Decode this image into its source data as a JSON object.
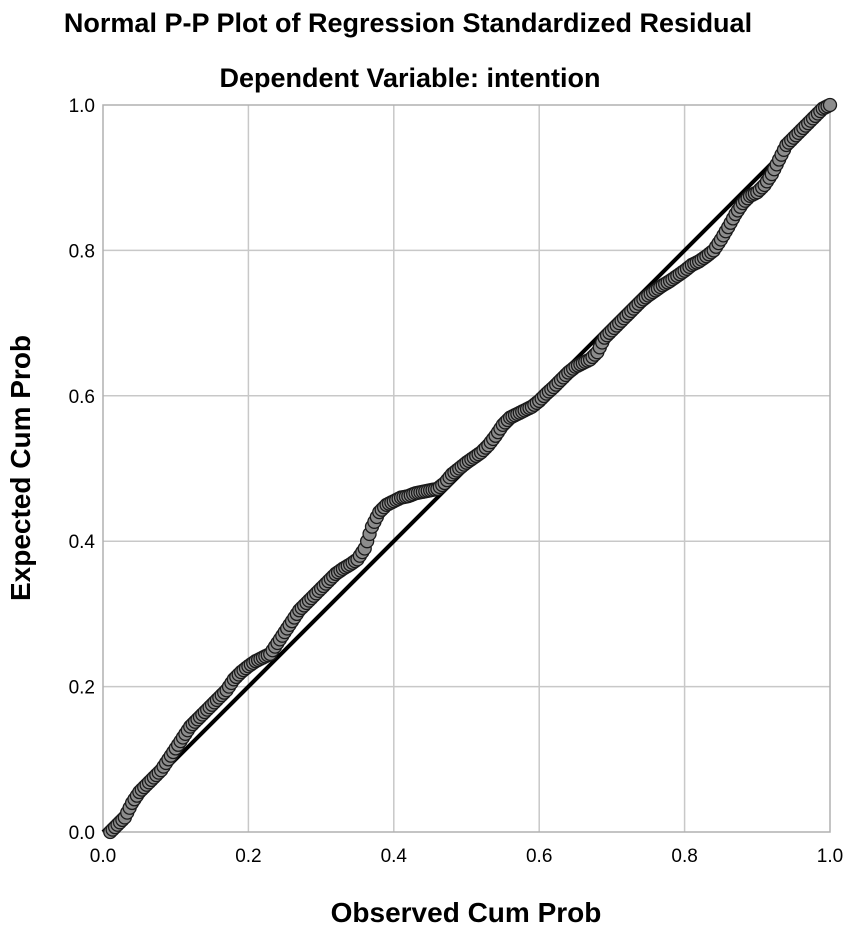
{
  "chart_data": {
    "type": "scatter",
    "title": "Normal P-P Plot of Regression Standardized Residual",
    "subtitle": "Dependent Variable: intention",
    "xlabel": "Observed Cum Prob",
    "ylabel": "Expected Cum Prob",
    "xlim": [
      0.0,
      1.0
    ],
    "ylim": [
      0.0,
      1.0
    ],
    "x_ticks": [
      "0.0",
      "0.2",
      "0.4",
      "0.6",
      "0.8",
      "1.0"
    ],
    "y_ticks": [
      "0.0",
      "0.2",
      "0.4",
      "0.6",
      "0.8",
      "1.0"
    ],
    "grid": true,
    "reference_line": {
      "from": [
        0.0,
        0.0
      ],
      "to": [
        1.0,
        1.0
      ]
    },
    "points": [
      [
        0.01,
        0.0
      ],
      [
        0.02,
        0.01
      ],
      [
        0.03,
        0.02
      ],
      [
        0.04,
        0.04
      ],
      [
        0.05,
        0.055
      ],
      [
        0.06,
        0.065
      ],
      [
        0.07,
        0.075
      ],
      [
        0.08,
        0.085
      ],
      [
        0.09,
        0.1
      ],
      [
        0.1,
        0.115
      ],
      [
        0.11,
        0.13
      ],
      [
        0.12,
        0.145
      ],
      [
        0.13,
        0.155
      ],
      [
        0.14,
        0.165
      ],
      [
        0.15,
        0.175
      ],
      [
        0.16,
        0.185
      ],
      [
        0.17,
        0.195
      ],
      [
        0.18,
        0.21
      ],
      [
        0.19,
        0.22
      ],
      [
        0.2,
        0.228
      ],
      [
        0.21,
        0.235
      ],
      [
        0.22,
        0.24
      ],
      [
        0.23,
        0.245
      ],
      [
        0.24,
        0.26
      ],
      [
        0.25,
        0.275
      ],
      [
        0.26,
        0.29
      ],
      [
        0.27,
        0.305
      ],
      [
        0.28,
        0.315
      ],
      [
        0.29,
        0.325
      ],
      [
        0.3,
        0.335
      ],
      [
        0.31,
        0.345
      ],
      [
        0.32,
        0.355
      ],
      [
        0.33,
        0.362
      ],
      [
        0.34,
        0.368
      ],
      [
        0.35,
        0.375
      ],
      [
        0.36,
        0.39
      ],
      [
        0.37,
        0.42
      ],
      [
        0.38,
        0.44
      ],
      [
        0.39,
        0.45
      ],
      [
        0.4,
        0.455
      ],
      [
        0.41,
        0.46
      ],
      [
        0.42,
        0.462
      ],
      [
        0.43,
        0.466
      ],
      [
        0.44,
        0.468
      ],
      [
        0.45,
        0.47
      ],
      [
        0.46,
        0.472
      ],
      [
        0.47,
        0.48
      ],
      [
        0.48,
        0.492
      ],
      [
        0.49,
        0.5
      ],
      [
        0.5,
        0.508
      ],
      [
        0.51,
        0.515
      ],
      [
        0.52,
        0.522
      ],
      [
        0.53,
        0.532
      ],
      [
        0.54,
        0.545
      ],
      [
        0.55,
        0.56
      ],
      [
        0.56,
        0.57
      ],
      [
        0.57,
        0.575
      ],
      [
        0.58,
        0.58
      ],
      [
        0.59,
        0.585
      ],
      [
        0.6,
        0.593
      ],
      [
        0.61,
        0.603
      ],
      [
        0.62,
        0.612
      ],
      [
        0.63,
        0.622
      ],
      [
        0.64,
        0.632
      ],
      [
        0.65,
        0.64
      ],
      [
        0.66,
        0.645
      ],
      [
        0.67,
        0.65
      ],
      [
        0.68,
        0.66
      ],
      [
        0.69,
        0.68
      ],
      [
        0.7,
        0.69
      ],
      [
        0.71,
        0.7
      ],
      [
        0.72,
        0.71
      ],
      [
        0.73,
        0.72
      ],
      [
        0.74,
        0.73
      ],
      [
        0.75,
        0.738
      ],
      [
        0.76,
        0.745
      ],
      [
        0.77,
        0.752
      ],
      [
        0.78,
        0.758
      ],
      [
        0.79,
        0.765
      ],
      [
        0.8,
        0.772
      ],
      [
        0.81,
        0.78
      ],
      [
        0.82,
        0.785
      ],
      [
        0.83,
        0.792
      ],
      [
        0.84,
        0.8
      ],
      [
        0.85,
        0.815
      ],
      [
        0.86,
        0.832
      ],
      [
        0.87,
        0.85
      ],
      [
        0.88,
        0.865
      ],
      [
        0.89,
        0.875
      ],
      [
        0.9,
        0.88
      ],
      [
        0.91,
        0.89
      ],
      [
        0.92,
        0.905
      ],
      [
        0.93,
        0.925
      ],
      [
        0.94,
        0.945
      ],
      [
        0.95,
        0.955
      ],
      [
        0.96,
        0.965
      ],
      [
        0.97,
        0.975
      ],
      [
        0.98,
        0.985
      ],
      [
        0.99,
        0.995
      ],
      [
        1.0,
        1.0
      ]
    ]
  }
}
